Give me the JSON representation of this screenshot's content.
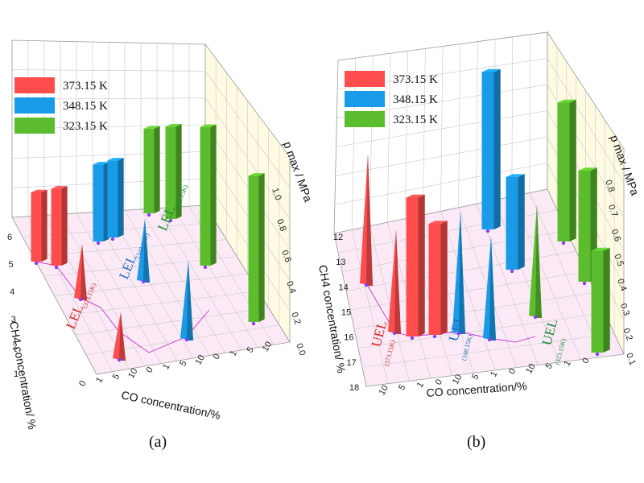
{
  "chart_data": [
    {
      "type": "bar3d",
      "panel_caption": "(a)",
      "zlabel": "p max / MPa",
      "xlabel": "CO concentration/%",
      "ylabel": "CH4 concentration/ %",
      "legend": [
        {
          "label": "373.15 K",
          "color": "#ff4d4d"
        },
        {
          "label": "348.15 K",
          "color": "#1a9be8"
        },
        {
          "label": "323.15 K",
          "color": "#5bbd2e"
        }
      ],
      "x_ticks": [
        "0",
        "1",
        "5",
        "10",
        "0",
        "1",
        "5",
        "10",
        "0",
        "1",
        "5",
        "10"
      ],
      "y_ticks": [
        "1",
        "2",
        "3",
        "4",
        "5",
        "6"
      ],
      "z_ticks": [
        "0.0",
        "0.2",
        "0.4",
        "0.6",
        "0.8",
        "1.0"
      ],
      "zlim": [
        0,
        1.0
      ],
      "limit_labels": [
        {
          "main": "LEL",
          "sub": "(373.15K)",
          "color": "#d9262b"
        },
        {
          "main": "LEL",
          "sub": "(348.15K)",
          "color": "#1f6fbf"
        },
        {
          "main": "LEL",
          "sub": "(323.15K)",
          "color": "#1d8a3c"
        }
      ],
      "series": [
        {
          "name": "373.15 K",
          "bars": [
            {
              "x": "0",
              "y": 5.5,
              "kind": "box",
              "value": 0.45
            },
            {
              "x": "1",
              "y": 5.5,
              "kind": "box",
              "value": 0.5
            },
            {
              "x": "1",
              "y": 4.5,
              "kind": "cone",
              "value": 0.35
            },
            {
              "x": "5",
              "y": 1.5,
              "kind": "cone",
              "value": 0.3
            }
          ]
        },
        {
          "name": "348.15 K",
          "bars": [
            {
              "x": "0",
              "y": 5.5,
              "kind": "box",
              "value": 0.5
            },
            {
              "x": "1",
              "y": 5.5,
              "kind": "box",
              "value": 0.5
            },
            {
              "x": "1",
              "y": 4.5,
              "kind": "cone",
              "value": 0.4
            },
            {
              "x": "5",
              "y": 4.0,
              "kind": "cone",
              "value": 0.5
            },
            {
              "x": "10",
              "y": 1.5,
              "kind": "cone",
              "value": 0.35
            }
          ]
        },
        {
          "name": "323.15 K",
          "bars": [
            {
              "x": "0",
              "y": 6,
              "kind": "box",
              "value": 0.55
            },
            {
              "x": "1",
              "y": 6,
              "kind": "box",
              "value": 0.6
            },
            {
              "x": "5",
              "y": 6,
              "kind": "box",
              "value": 0.9
            },
            {
              "x": "10",
              "y": 6,
              "kind": "box",
              "value": 0.95
            }
          ]
        }
      ]
    },
    {
      "type": "bar3d",
      "panel_caption": "(b)",
      "zlabel": "p max / MPa",
      "xlabel": "CO concentration/%",
      "ylabel": "CH4 concentration/ %",
      "legend": [
        {
          "label": "373.15 K",
          "color": "#ff4d4d"
        },
        {
          "label": "348.15 K",
          "color": "#1a9be8"
        },
        {
          "label": "323.15 K",
          "color": "#5bbd2e"
        }
      ],
      "x_ticks": [
        "10",
        "5",
        "1",
        "0",
        "10",
        "5",
        "1",
        "0",
        "10",
        "5",
        "1",
        "0"
      ],
      "y_ticks": [
        "12",
        "13",
        "14",
        "15",
        "16",
        "17",
        "18"
      ],
      "z_ticks": [
        "0.1",
        "0.2",
        "0.3",
        "0.4",
        "0.5",
        "0.6",
        "0.7",
        "0.8"
      ],
      "zlim": [
        0,
        0.85
      ],
      "limit_labels": [
        {
          "main": "UEL",
          "sub": "(373.15K)",
          "color": "#d9262b"
        },
        {
          "main": "UEL",
          "sub": "(348.15K)",
          "color": "#1f6fbf"
        },
        {
          "main": "UEL",
          "sub": "(323.15K)",
          "color": "#1d8a3c"
        }
      ],
      "series": [
        {
          "name": "373.15 K",
          "bars": [
            {
              "x": "10",
              "y": 14,
              "kind": "cone",
              "value": 0.7
            },
            {
              "x": "5",
              "y": 15,
              "kind": "cone",
              "value": 0.55
            },
            {
              "x": "1",
              "y": 16,
              "kind": "box",
              "value": 0.75
            },
            {
              "x": "0",
              "y": 16,
              "kind": "box",
              "value": 0.6
            }
          ]
        },
        {
          "name": "348.15 K",
          "bars": [
            {
              "x": "10",
              "y": 16,
              "kind": "cone",
              "value": 0.65
            },
            {
              "x": "5",
              "y": 16,
              "kind": "cone",
              "value": 0.55
            },
            {
              "x": "1",
              "y": 15,
              "kind": "box",
              "value": 0.85
            },
            {
              "x": "0",
              "y": 15,
              "kind": "box",
              "value": 0.5
            }
          ]
        },
        {
          "name": "323.15 K",
          "bars": [
            {
              "x": "10",
              "y": 14,
              "kind": "cone",
              "value": 0.6
            },
            {
              "x": "5",
              "y": 15,
              "kind": "box",
              "value": 0.75
            },
            {
              "x": "1",
              "y": 15,
              "kind": "box",
              "value": 0.6
            },
            {
              "x": "0",
              "y": 16,
              "kind": "box",
              "value": 0.55
            }
          ]
        }
      ]
    }
  ]
}
